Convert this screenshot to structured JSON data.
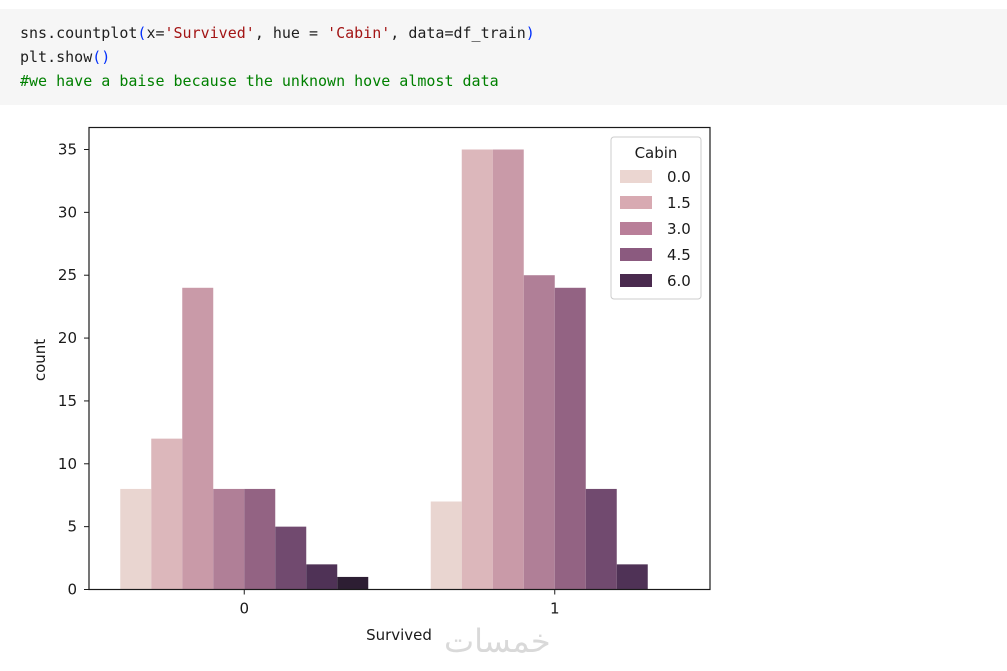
{
  "code": {
    "line1": {
      "a": "sns.countplot",
      "b": "(",
      "c": "x=",
      "d": "'Survived'",
      "e": ", hue = ",
      "f": "'Cabin'",
      "g": ", data=df_train",
      "h": ")"
    },
    "line2": {
      "a": "plt.show",
      "b": "()"
    },
    "line3": "#we have a baise because the unknown hove almost data"
  },
  "watermark": "خمسات",
  "chart_data": {
    "type": "bar",
    "categories": [
      "0",
      "1"
    ],
    "xlabel": "Survived",
    "ylabel": "count",
    "ylim": [
      0,
      36.75
    ],
    "yticks": [
      0,
      5,
      10,
      15,
      20,
      25,
      30,
      35
    ],
    "legend_title": "Cabin",
    "legend_position": "top-right",
    "legend_labels": [
      "0.0",
      "1.5",
      "3.0",
      "4.5",
      "6.0"
    ],
    "series": [
      {
        "value_label": "0.0",
        "color": "#e9d5d0",
        "values": [
          8,
          7
        ]
      },
      {
        "value_label": "1.5",
        "color": "#dcb7bb",
        "values": [
          12,
          35
        ]
      },
      {
        "value_label": "3.0",
        "color": "#c99aa8",
        "values": [
          24,
          35
        ]
      },
      {
        "value_label": "3.0",
        "color": "#b07f97",
        "values": [
          8,
          25
        ]
      },
      {
        "value_label": "4.5",
        "color": "#936383",
        "values": [
          8,
          24
        ]
      },
      {
        "value_label": "4.5",
        "color": "#714a6f",
        "values": [
          5,
          8
        ]
      },
      {
        "value_label": "6.0",
        "color": "#4f3256",
        "values": [
          2,
          2
        ]
      },
      {
        "value_label": "6.0",
        "color": "#2d1e33",
        "values": [
          1,
          0
        ]
      }
    ],
    "grid": false
  }
}
